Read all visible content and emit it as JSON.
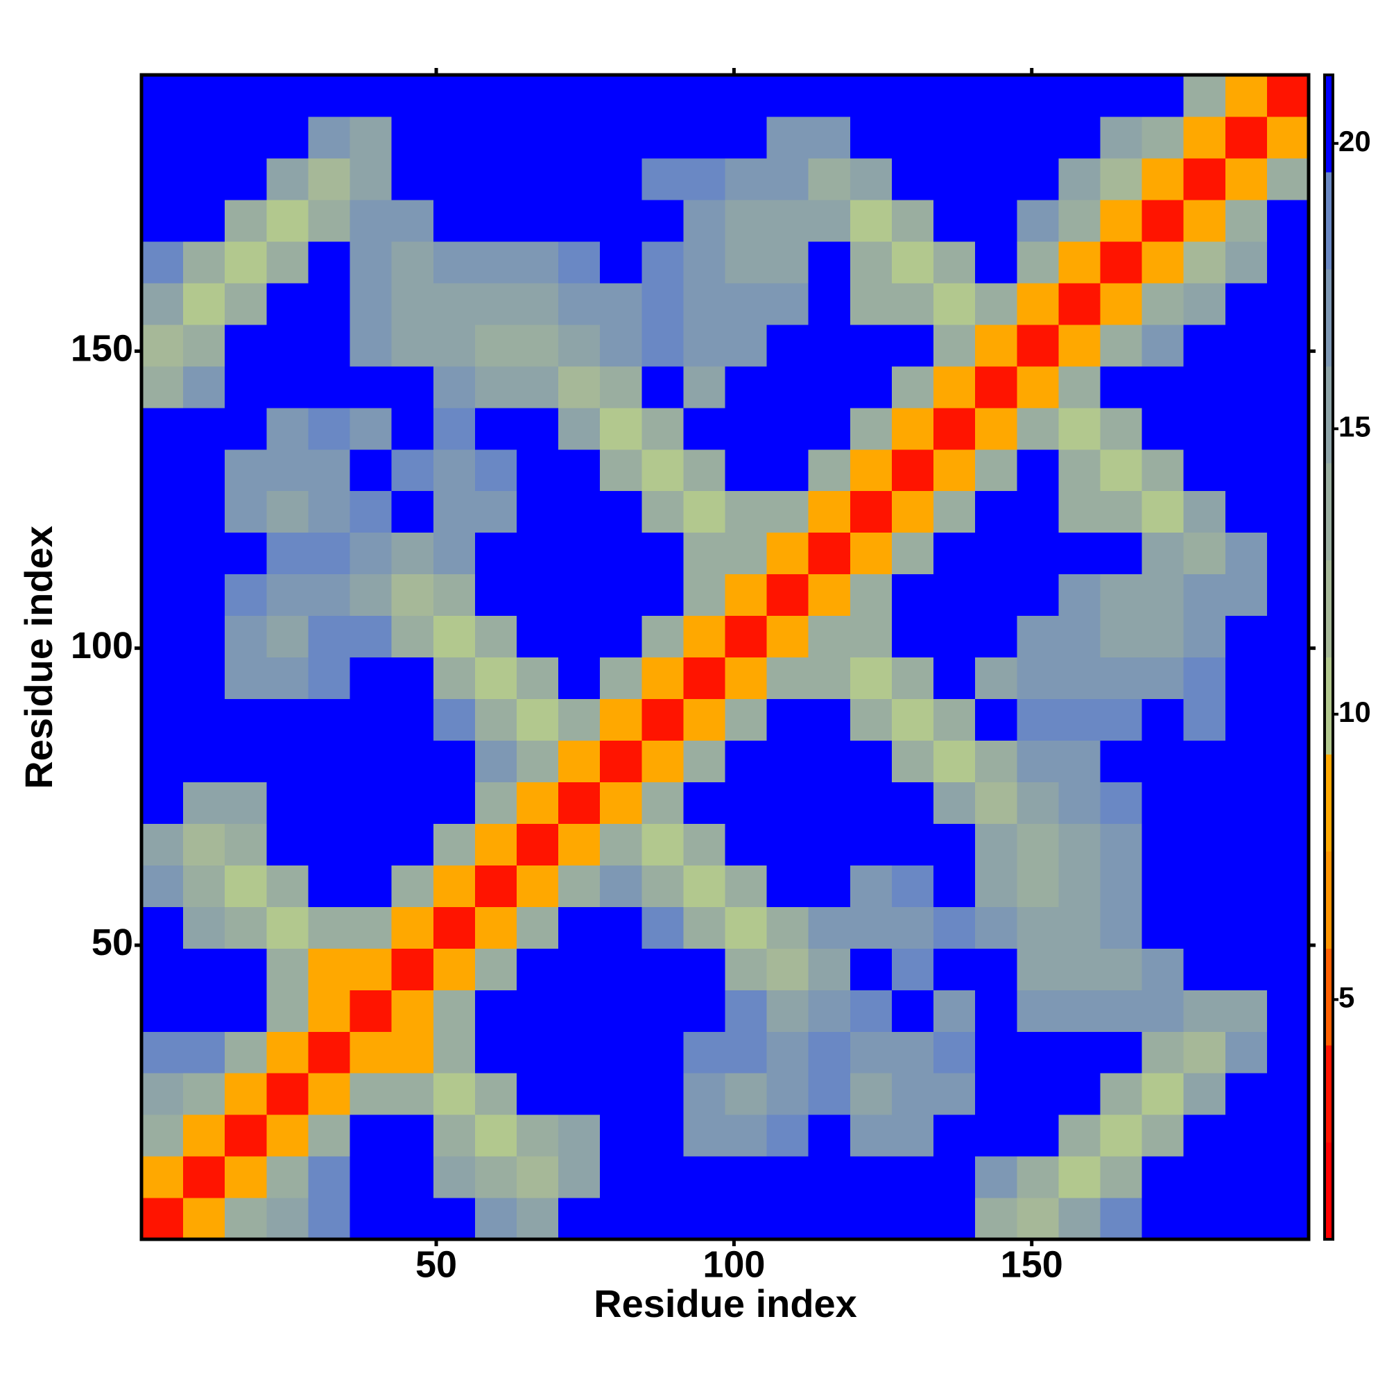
{
  "chart_data": {
    "type": "heatmap",
    "xlabel": "Residue index",
    "ylabel": "Residue index",
    "xlim": [
      0.5,
      196.5
    ],
    "ylim": [
      0.5,
      196.5
    ],
    "xticks": [
      50,
      100,
      150
    ],
    "yticks": [
      50,
      100,
      150
    ],
    "x": [
      4,
      11,
      18,
      25,
      32,
      39,
      46,
      53,
      60,
      67,
      74,
      81,
      88,
      95,
      102,
      109,
      116,
      123,
      130,
      137,
      144,
      151,
      158,
      165,
      172,
      179,
      186,
      193
    ],
    "y": [
      4,
      11,
      18,
      25,
      32,
      39,
      46,
      53,
      60,
      67,
      74,
      81,
      88,
      95,
      102,
      109,
      116,
      123,
      130,
      137,
      144,
      151,
      158,
      165,
      172,
      179,
      186,
      193
    ],
    "z": [
      [
        3,
        8,
        13,
        15,
        19,
        21,
        21,
        21,
        17,
        16,
        21,
        21,
        21,
        21,
        21,
        21,
        21,
        21,
        21,
        21,
        14,
        12,
        15,
        18,
        21,
        21,
        21,
        21
      ],
      [
        8,
        3,
        8,
        13,
        18,
        21,
        21,
        16,
        14,
        12,
        16,
        21,
        21,
        21,
        21,
        21,
        21,
        21,
        21,
        21,
        17,
        13,
        10,
        14,
        21,
        21,
        21,
        21
      ],
      [
        13,
        8,
        3,
        8,
        13,
        21,
        21,
        14,
        10,
        14,
        16,
        21,
        21,
        17,
        17,
        18,
        21,
        17,
        17,
        21,
        21,
        21,
        13,
        10,
        14,
        21,
        21,
        21
      ],
      [
        15,
        13,
        8,
        3,
        8,
        13,
        14,
        10,
        14,
        21,
        21,
        21,
        21,
        17,
        16,
        17,
        18,
        16,
        17,
        17,
        21,
        21,
        21,
        13,
        10,
        15,
        21,
        21
      ],
      [
        19,
        18,
        13,
        8,
        3,
        8,
        9,
        14,
        21,
        21,
        21,
        21,
        21,
        18,
        18,
        17,
        18,
        17,
        17,
        18,
        21,
        21,
        21,
        21,
        14,
        12,
        17,
        21
      ],
      [
        21,
        21,
        21,
        13,
        8,
        3,
        8,
        13,
        21,
        21,
        21,
        21,
        21,
        21,
        18,
        15,
        17,
        18,
        21,
        17,
        21,
        17,
        17,
        17,
        17,
        15,
        16,
        21
      ],
      [
        21,
        21,
        21,
        14,
        9,
        8,
        3,
        8,
        13,
        21,
        21,
        21,
        21,
        21,
        14,
        11,
        15,
        21,
        18,
        21,
        21,
        16,
        16,
        16,
        17,
        21,
        21,
        21
      ],
      [
        21,
        16,
        14,
        10,
        14,
        13,
        8,
        3,
        8,
        13,
        21,
        21,
        18,
        14,
        10,
        14,
        17,
        17,
        17,
        18,
        17,
        16,
        16,
        17,
        21,
        21,
        21,
        21
      ],
      [
        17,
        14,
        10,
        14,
        21,
        21,
        13,
        8,
        3,
        8,
        13,
        17,
        14,
        10,
        14,
        21,
        21,
        17,
        18,
        21,
        16,
        14,
        15,
        17,
        21,
        21,
        21,
        21
      ],
      [
        16,
        12,
        14,
        21,
        21,
        21,
        21,
        13,
        8,
        3,
        8,
        13,
        10,
        14,
        21,
        21,
        21,
        21,
        21,
        21,
        15,
        13,
        16,
        17,
        21,
        21,
        21,
        21
      ],
      [
        21,
        16,
        16,
        21,
        21,
        21,
        21,
        21,
        13,
        8,
        3,
        8,
        13,
        21,
        21,
        21,
        21,
        21,
        21,
        15,
        11,
        15,
        17,
        18,
        21,
        21,
        21,
        21
      ],
      [
        21,
        21,
        21,
        21,
        21,
        21,
        21,
        21,
        17,
        13,
        8,
        3,
        8,
        13,
        21,
        21,
        21,
        21,
        14,
        10,
        14,
        17,
        17,
        21,
        21,
        21,
        21,
        21
      ],
      [
        21,
        21,
        21,
        21,
        21,
        21,
        21,
        18,
        14,
        10,
        13,
        8,
        3,
        8,
        13,
        21,
        21,
        14,
        10,
        14,
        21,
        18,
        18,
        18,
        21,
        18,
        21,
        21
      ],
      [
        21,
        21,
        17,
        17,
        18,
        21,
        21,
        14,
        10,
        14,
        21,
        13,
        8,
        3,
        8,
        13,
        14,
        10,
        14,
        21,
        16,
        17,
        17,
        17,
        17,
        18,
        21,
        21
      ],
      [
        21,
        21,
        17,
        16,
        18,
        18,
        14,
        10,
        14,
        21,
        21,
        21,
        13,
        8,
        3,
        8,
        13,
        13,
        21,
        21,
        21,
        17,
        17,
        16,
        16,
        17,
        21,
        21
      ],
      [
        21,
        21,
        18,
        17,
        17,
        15,
        11,
        14,
        21,
        21,
        21,
        21,
        21,
        13,
        8,
        3,
        8,
        13,
        21,
        21,
        21,
        21,
        17,
        16,
        16,
        17,
        17,
        21
      ],
      [
        21,
        21,
        21,
        18,
        18,
        17,
        15,
        17,
        21,
        21,
        21,
        21,
        21,
        14,
        13,
        8,
        3,
        8,
        13,
        21,
        21,
        21,
        21,
        21,
        15,
        13,
        17,
        21
      ],
      [
        21,
        21,
        17,
        16,
        17,
        18,
        21,
        17,
        17,
        21,
        21,
        21,
        14,
        10,
        13,
        13,
        8,
        3,
        8,
        13,
        21,
        21,
        14,
        14,
        10,
        15,
        21,
        21
      ],
      [
        21,
        21,
        17,
        17,
        17,
        21,
        18,
        17,
        18,
        21,
        21,
        14,
        10,
        14,
        21,
        21,
        13,
        8,
        3,
        8,
        13,
        21,
        14,
        10,
        14,
        21,
        21,
        21
      ],
      [
        21,
        21,
        21,
        17,
        18,
        17,
        21,
        18,
        21,
        21,
        15,
        10,
        14,
        21,
        21,
        21,
        21,
        13,
        8,
        3,
        8,
        13,
        10,
        14,
        21,
        21,
        21,
        21
      ],
      [
        14,
        17,
        21,
        21,
        21,
        21,
        21,
        17,
        16,
        15,
        11,
        14,
        21,
        16,
        21,
        21,
        21,
        21,
        13,
        8,
        3,
        8,
        13,
        21,
        21,
        21,
        21,
        21
      ],
      [
        12,
        13,
        21,
        21,
        21,
        17,
        16,
        16,
        14,
        13,
        15,
        17,
        18,
        17,
        17,
        21,
        21,
        21,
        21,
        13,
        8,
        3,
        8,
        13,
        17,
        21,
        21,
        21
      ],
      [
        15,
        10,
        13,
        21,
        21,
        17,
        16,
        16,
        15,
        16,
        17,
        17,
        18,
        17,
        17,
        17,
        21,
        14,
        14,
        10,
        13,
        8,
        3,
        8,
        13,
        16,
        21,
        21
      ],
      [
        18,
        14,
        10,
        13,
        21,
        17,
        16,
        17,
        17,
        17,
        18,
        21,
        18,
        17,
        16,
        16,
        21,
        14,
        10,
        14,
        21,
        13,
        8,
        3,
        8,
        12,
        15,
        21
      ],
      [
        21,
        21,
        14,
        10,
        14,
        17,
        17,
        21,
        21,
        21,
        21,
        21,
        21,
        17,
        16,
        16,
        15,
        10,
        14,
        21,
        21,
        17,
        13,
        8,
        3,
        8,
        13,
        21
      ],
      [
        21,
        21,
        21,
        15,
        12,
        15,
        21,
        21,
        21,
        21,
        21,
        21,
        18,
        18,
        17,
        17,
        13,
        15,
        21,
        21,
        21,
        21,
        16,
        12,
        8,
        3,
        8,
        13
      ],
      [
        21,
        21,
        21,
        21,
        17,
        16,
        21,
        21,
        21,
        21,
        21,
        21,
        21,
        21,
        21,
        17,
        17,
        21,
        21,
        21,
        21,
        21,
        21,
        15,
        13,
        8,
        3,
        8
      ],
      [
        21,
        21,
        21,
        21,
        21,
        21,
        21,
        21,
        21,
        21,
        21,
        21,
        21,
        21,
        21,
        21,
        21,
        21,
        21,
        21,
        21,
        21,
        21,
        21,
        21,
        13,
        8,
        3
      ]
    ],
    "colorbar": {
      "zlim": [
        0.8,
        21.2
      ],
      "ticks": [
        5,
        10,
        15,
        20
      ],
      "colors": [
        "#ff0000",
        "#ff1400",
        "#ff6000",
        "#ff9400",
        "#ffa800",
        "#b2c88e",
        "#a6b898",
        "#9aaea0",
        "#8ea4a8",
        "#7e98b4",
        "#6a88c4",
        "#0000ff"
      ]
    }
  }
}
